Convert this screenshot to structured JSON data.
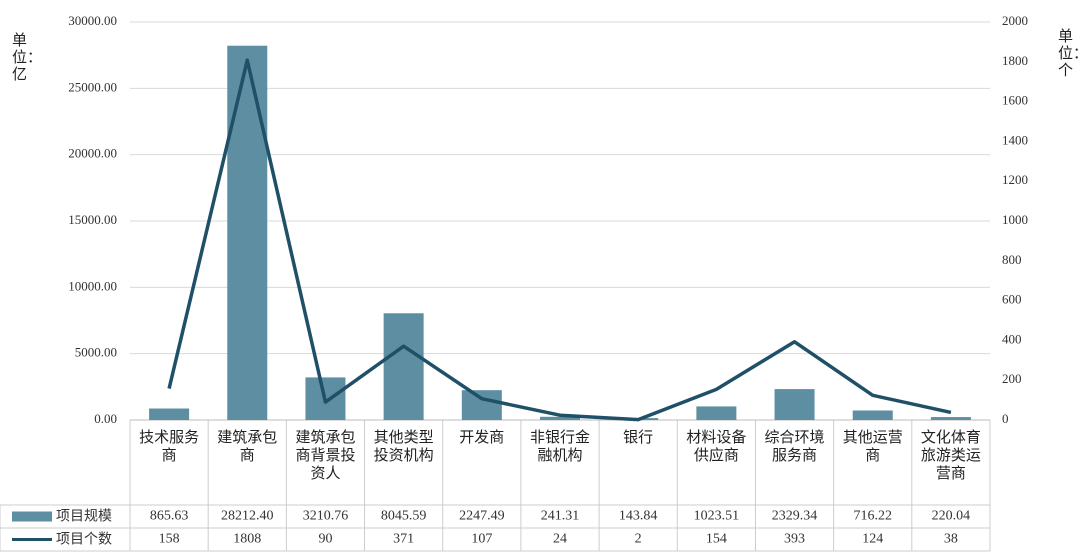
{
  "chart_data": {
    "type": "combo",
    "y_label": "单位：亿",
    "y2_label": "单位：个",
    "categories": [
      "技术服务商",
      "建筑承包商",
      "建筑承包商背景投资人",
      "其他类型投资机构",
      "开发商",
      "非银行金融机构",
      "银行",
      "材料设备供应商",
      "综合环境服务商",
      "其他运营商",
      "文化体育旅游类运营商"
    ],
    "series": [
      {
        "name": "项目规模",
        "type": "bar",
        "color": "#5e8ea1",
        "axis": "y",
        "values": [
          865.63,
          28212.4,
          3210.76,
          8045.59,
          2247.49,
          241.31,
          143.84,
          1023.51,
          2329.34,
          716.22,
          220.04
        ],
        "value_labels": [
          "865.63",
          "28212.40",
          "3210.76",
          "8045.59",
          "2247.49",
          "241.31",
          "143.84",
          "1023.51",
          "2329.34",
          "716.22",
          "220.04"
        ]
      },
      {
        "name": "项目个数",
        "type": "line",
        "color": "#1f5068",
        "axis": "y2",
        "values": [
          158,
          1808,
          90,
          371,
          107,
          24,
          2,
          154,
          393,
          124,
          38
        ]
      }
    ],
    "ylim": [
      0,
      30000
    ],
    "yticks": [
      {
        "value": 0,
        "label": "0.00"
      },
      {
        "value": 5000,
        "label": "5000.00"
      },
      {
        "value": 10000,
        "label": "10000.00"
      },
      {
        "value": 15000,
        "label": "15000.00"
      },
      {
        "value": 20000,
        "label": "20000.00"
      },
      {
        "value": 25000,
        "label": "25000.00"
      },
      {
        "value": 30000,
        "label": "30000.00"
      }
    ],
    "y2lim": [
      0,
      2000
    ],
    "y2ticks": [
      0,
      200,
      400,
      600,
      800,
      1000,
      1200,
      1400,
      1600,
      1800,
      2000
    ],
    "grid": true
  }
}
